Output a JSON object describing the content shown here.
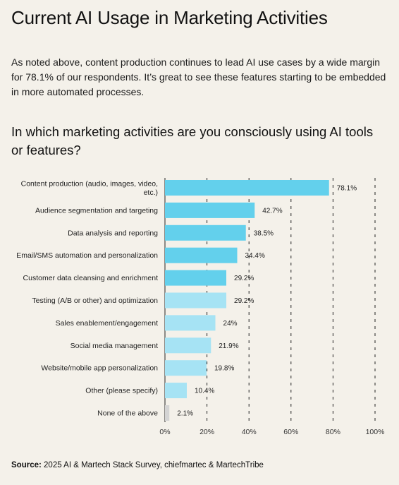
{
  "header": {
    "title": "Current AI Usage in Marketing Activities",
    "intro": "As noted above, content production continues to lead AI use cases by a wide margin for 78.1% of our respondents. It’s great to see these features starting to be embedded in more automated processes."
  },
  "chart_data": {
    "type": "bar",
    "orientation": "horizontal",
    "title": "In which marketing activities are you consciously using AI tools or features?",
    "categories": [
      [
        "Content production (audio, images, video,",
        "etc.)"
      ],
      [
        "Audience segmentation and targeting"
      ],
      [
        "Data analysis and reporting"
      ],
      [
        "Email/SMS automation and personalization"
      ],
      [
        "Customer data cleansing and enrichment"
      ],
      [
        "Testing (A/B or other) and optimization"
      ],
      [
        "Sales enablement/engagement"
      ],
      [
        "Social media management"
      ],
      [
        "Website/mobile app personalization"
      ],
      [
        "Other (please specify)"
      ],
      [
        "None of the above"
      ]
    ],
    "values": [
      78.1,
      42.7,
      38.5,
      34.4,
      29.2,
      29.2,
      24,
      21.9,
      19.8,
      10.4,
      2.1
    ],
    "value_labels": [
      "78.1%",
      "42.7%",
      "38.5%",
      "34.4%",
      "29.2%",
      "29.2%",
      "24%",
      "21.9%",
      "19.8%",
      "10.4%",
      "2.1%"
    ],
    "bar_colors": [
      "#63d0ec",
      "#63d0ec",
      "#63d0ec",
      "#63d0ec",
      "#63d0ec",
      "#a6e3f4",
      "#a6e3f4",
      "#a6e3f4",
      "#a6e3f4",
      "#a6e3f4",
      "#d4d4d4"
    ],
    "xlim": [
      0,
      100
    ],
    "xticks": [
      0,
      20,
      40,
      60,
      80,
      100
    ],
    "xtick_labels": [
      "0%",
      "20%",
      "40%",
      "60%",
      "80%",
      "100%"
    ],
    "grid": "dashed vertical",
    "legend": "none"
  },
  "footer": {
    "source_label": "Source:",
    "source_text": " 2025 AI & Martech Stack Survey, chiefmartec & MartechTribe"
  }
}
